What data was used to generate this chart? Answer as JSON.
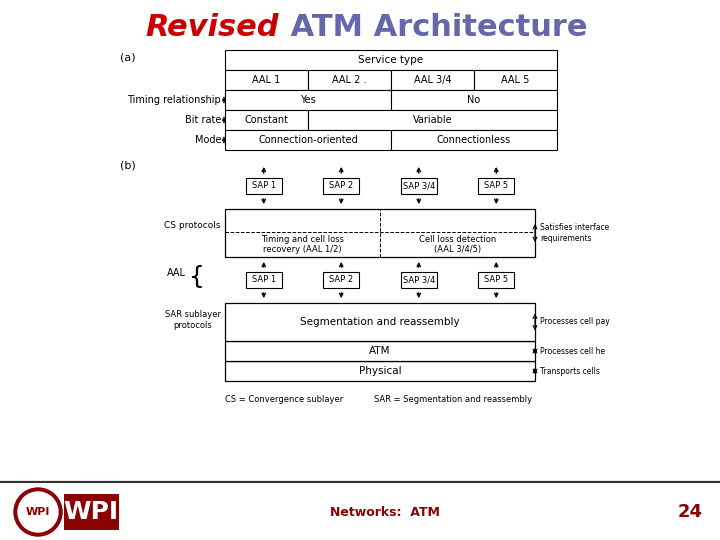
{
  "title_revised": "Revised",
  "title_atm": " ATM Architecture",
  "title_revised_color": "#cc0000",
  "title_atm_color": "#6666aa",
  "bg_color": "#f0f0f0",
  "footer_text": "Networks:  ATM",
  "footer_color": "#8B0000",
  "page_num": "24",
  "page_num_color": "#8B0000",
  "table_a_label": "(a)",
  "table_b_label": "(b)",
  "table_a": {
    "header": "Service type",
    "col_headers": [
      "AAL 1",
      "AAL 2 .",
      "AAL 3/4",
      "AAL 5"
    ],
    "rows": [
      {
        "label": "Timing relationship",
        "cells": [
          [
            "Yes",
            2
          ],
          [
            "No",
            2
          ]
        ]
      },
      {
        "label": "Bit rate",
        "cells": [
          [
            "Constant",
            1
          ],
          [
            "Variable",
            3
          ]
        ]
      },
      {
        "label": "Mode",
        "cells": [
          [
            "Connection-oriented",
            2
          ],
          [
            "Connectionless",
            2
          ]
        ]
      }
    ]
  },
  "diagram_b": {
    "sap_top_boxes": [
      "SAP 1",
      "SAP 2",
      "SAP 3/4",
      "SAP 5"
    ],
    "sap_bot_boxes": [
      "SAP 1",
      "SAP 2",
      "SAP 3/4",
      "SAP 5"
    ],
    "cs_left_label": "CS protocols",
    "sar_left_label": "SAR sublayer\nprotocols",
    "aal_label": "AAL",
    "cs_cells": [
      "Timing and cell loss\nrecovery (AAL 1/2)",
      "Cell loss detection\n(AAL 3/4/5)"
    ],
    "sar_cell": "Segmentation and reassembly",
    "atm_cell": "ATM",
    "phys_cell": "Physical",
    "right_labels": [
      "Satisfies interface\nrequirements",
      "Processes cell pay",
      "Processes cell he",
      "Transports cells"
    ],
    "footnote_cs": "CS = Convergence sublayer",
    "footnote_sar": "SAR = Segmentation and reassembly"
  }
}
